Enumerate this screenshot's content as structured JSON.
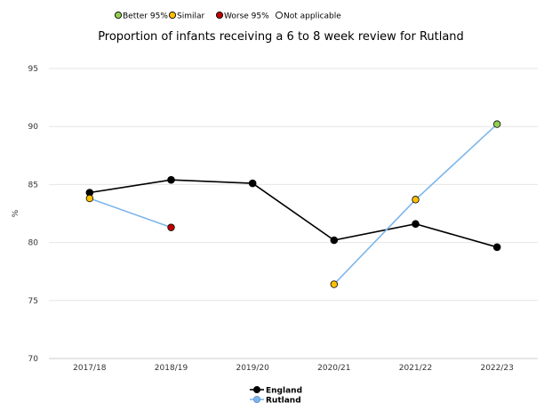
{
  "significance_legend": [
    {
      "label": "Better 95%",
      "color": "#92d050"
    },
    {
      "label": "Similar",
      "color": "#ffc000"
    },
    {
      "label": "Worse 95%",
      "color": "#c00000"
    },
    {
      "label": "Not applicable",
      "color": "#ffffff"
    }
  ],
  "chart_data": {
    "type": "line",
    "title": "Proportion of infants receiving a 6 to 8 week review for Rutland",
    "ylabel": "%",
    "xlabel": "",
    "ylim": [
      70,
      95
    ],
    "yticks": [
      70,
      75,
      80,
      85,
      90,
      95
    ],
    "categories": [
      "2017/18",
      "2018/19",
      "2019/20",
      "2020/21",
      "2021/22",
      "2022/23"
    ],
    "grid": true,
    "legend_placement": "bottom-center",
    "series": [
      {
        "name": "England",
        "line_color": "#000000",
        "values": [
          84.3,
          85.4,
          85.1,
          80.2,
          81.6,
          79.6
        ],
        "marker_colors": [
          "#000000",
          "#000000",
          "#000000",
          "#000000",
          "#000000",
          "#000000"
        ]
      },
      {
        "name": "Rutland",
        "line_color": "#7cb5ec",
        "values": [
          83.8,
          81.3,
          null,
          76.4,
          83.7,
          90.2
        ],
        "marker_colors": [
          "#ffc000",
          "#c00000",
          null,
          "#ffc000",
          "#ffc000",
          "#92d050"
        ]
      }
    ]
  }
}
